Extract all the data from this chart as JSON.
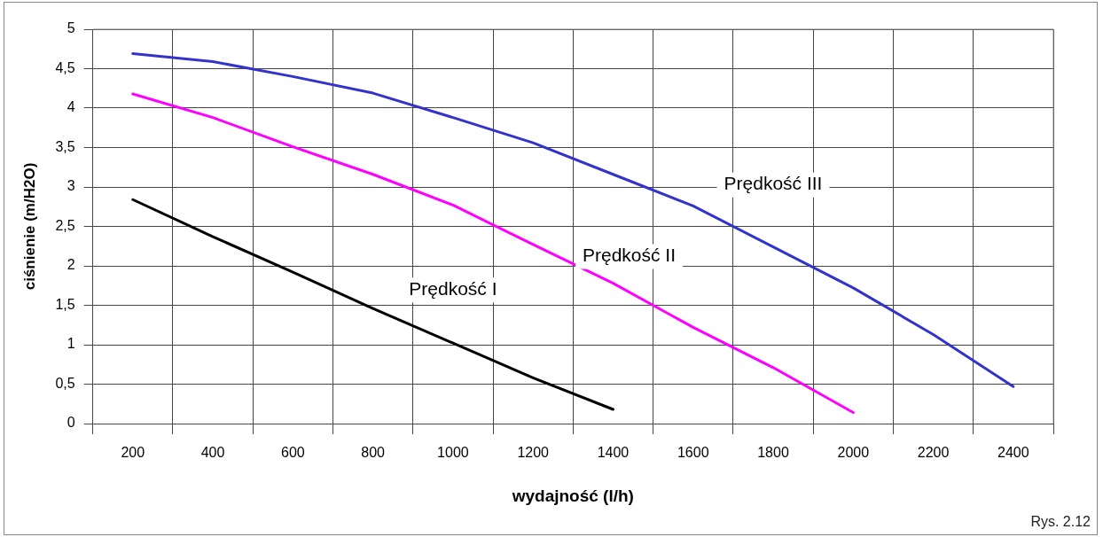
{
  "chart_data": {
    "type": "line",
    "xlabel": "wydajność (l/h)",
    "ylabel": "ciśnienie (m/H2O)",
    "categories": [
      "200",
      "400",
      "600",
      "800",
      "1000",
      "1200",
      "1400",
      "1600",
      "1800",
      "2000",
      "2200",
      "2400"
    ],
    "series": [
      {
        "name": "Prędkość I",
        "color": "#000000",
        "values": [
          2.84,
          2.37,
          1.92,
          1.46,
          1.02,
          0.58,
          0.18,
          null,
          null,
          null,
          null,
          null
        ]
      },
      {
        "name": "Prędkość II",
        "color": "#ff00ff",
        "values": [
          4.18,
          3.88,
          3.51,
          3.16,
          2.77,
          2.27,
          1.78,
          1.22,
          0.71,
          0.14,
          null,
          null
        ]
      },
      {
        "name": "Prędkość III",
        "color": "#3333cc",
        "values": [
          4.69,
          4.59,
          4.4,
          4.19,
          3.88,
          3.56,
          3.16,
          2.76,
          2.24,
          1.72,
          1.13,
          0.47
        ]
      }
    ],
    "ylim": [
      0,
      5
    ],
    "yticks": [
      0,
      {
        "value": 0.5,
        "label": "0,5"
      },
      1,
      {
        "value": 1.5,
        "label": "1,5"
      },
      2,
      {
        "value": 2.5,
        "label": "2,5"
      },
      3,
      {
        "value": 3.5,
        "label": "3,5"
      },
      4,
      {
        "value": 4.5,
        "label": "4,5"
      },
      5
    ],
    "grid": true,
    "legend": false,
    "marker": "none",
    "line_style": "solid",
    "annotations": [
      "Rys. 2.12"
    ]
  }
}
